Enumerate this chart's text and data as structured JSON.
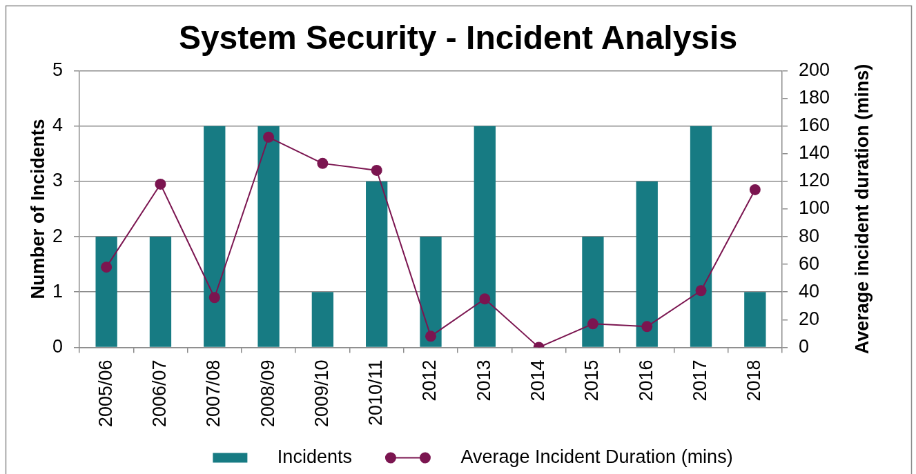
{
  "chart_data": {
    "type": "bar",
    "title": "System Security - Incident Analysis",
    "ylabel": "Number of Incidents",
    "y2label": "Average incident duration (mins)",
    "categories": [
      "2005/06",
      "2006/07",
      "2007/08",
      "2008/09",
      "2009/10",
      "2010/11",
      "2012",
      "2013",
      "2014",
      "2015",
      "2016",
      "2017",
      "2018"
    ],
    "series": [
      {
        "name": "Incidents",
        "color": "#177b83",
        "values": [
          2,
          2,
          4,
          4,
          1,
          3,
          2,
          4,
          0,
          2,
          3,
          4,
          1
        ]
      },
      {
        "name": "Average Incident Duration (mins)",
        "type": "line",
        "axis": "y2",
        "color": "#7b1550",
        "values": [
          58,
          118,
          36,
          152,
          133,
          128,
          8,
          35,
          0,
          17,
          15,
          41,
          114
        ]
      }
    ],
    "ylim": [
      0,
      5
    ],
    "yticks": [
      0,
      1,
      2,
      3,
      4,
      5
    ],
    "y2lim": [
      0,
      200
    ],
    "y2ticks": [
      0,
      20,
      40,
      60,
      80,
      100,
      120,
      140,
      160,
      180,
      200
    ],
    "grid": "y",
    "legend": "bottom",
    "marker": "circle",
    "line_style": "solid"
  }
}
